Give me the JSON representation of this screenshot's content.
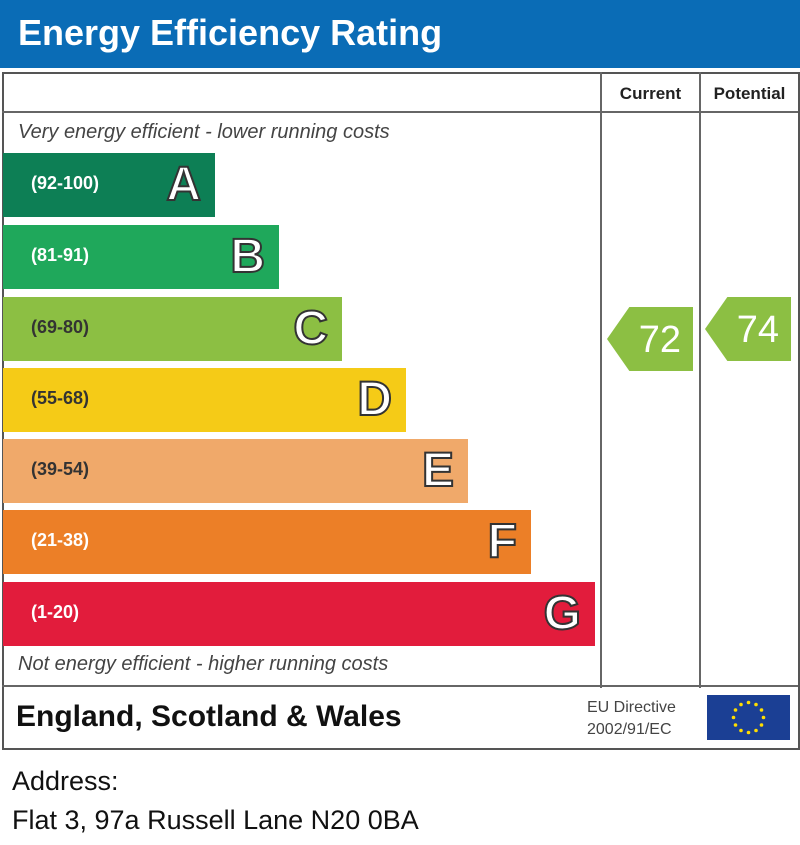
{
  "title": "Energy Efficiency Rating",
  "columns": {
    "current": "Current",
    "potential": "Potential"
  },
  "top_note": "Very energy efficient - lower running costs",
  "bottom_note": "Not energy efficient - higher running costs",
  "chart_data": {
    "type": "bar",
    "bands": [
      {
        "letter": "A",
        "range": "(92-100)",
        "color": "#0d7f55"
      },
      {
        "letter": "B",
        "range": "(81-91)",
        "color": "#1fa85b"
      },
      {
        "letter": "C",
        "range": "(69-80)",
        "color": "#8cbf43"
      },
      {
        "letter": "D",
        "range": "(55-68)",
        "color": "#f5cb17"
      },
      {
        "letter": "E",
        "range": "(39-54)",
        "color": "#f0a96a"
      },
      {
        "letter": "F",
        "range": "(21-38)",
        "color": "#ec7f27"
      },
      {
        "letter": "G",
        "range": "(1-20)",
        "color": "#e21c3c"
      }
    ],
    "current": {
      "value": "72",
      "band": "C",
      "color": "#8cbf43"
    },
    "potential": {
      "value": "74",
      "band": "C",
      "color": "#8cbf43"
    }
  },
  "footer": {
    "country": "England, Scotland & Wales",
    "directive_line1": "EU Directive",
    "directive_line2": "2002/91/EC",
    "flag_icon": "eu-flag-icon"
  },
  "address": {
    "label": "Address:",
    "value": "Flat 3, 97a Russell Lane N20 0BA"
  }
}
